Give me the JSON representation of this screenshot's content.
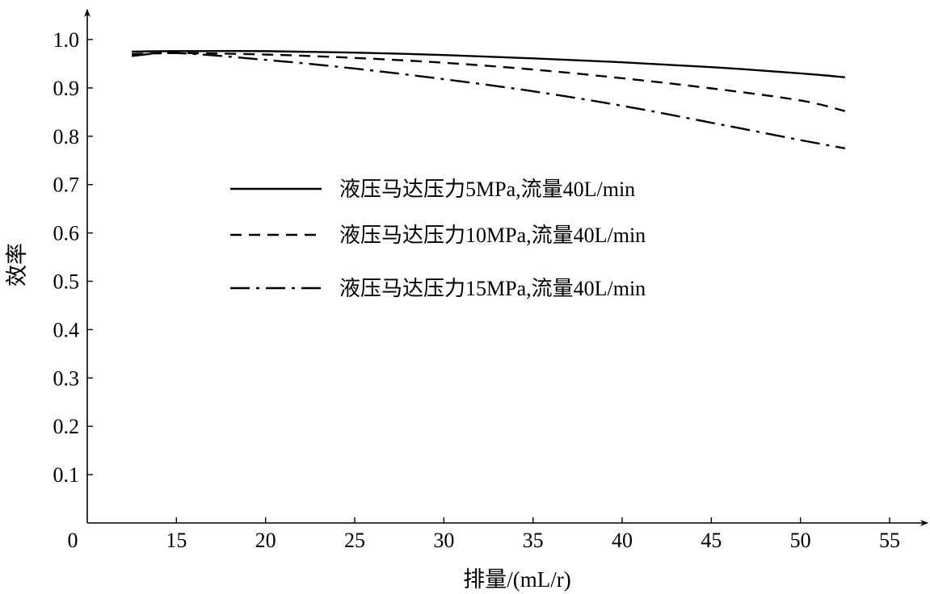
{
  "chart_data": {
    "type": "line",
    "title": "",
    "xlabel": "排量/(mL/r)",
    "ylabel": "效率",
    "xlim": [
      10,
      55
    ],
    "ylim": [
      0,
      1.0
    ],
    "origin_label": "0",
    "x_ticks": [
      15,
      20,
      25,
      30,
      35,
      40,
      45,
      50,
      55
    ],
    "x_tick_labels": [
      "15",
      "20",
      "25",
      "30",
      "35",
      "40",
      "45",
      "50",
      "55"
    ],
    "y_ticks": [
      0.1,
      0.2,
      0.3,
      0.4,
      0.5,
      0.6,
      0.7,
      0.8,
      0.9,
      1.0
    ],
    "y_tick_labels": [
      "0.1",
      "0.2",
      "0.3",
      "0.4",
      "0.5",
      "0.6",
      "0.7",
      "0.8",
      "0.9",
      "1.0"
    ],
    "grid": false,
    "legend_position": "center-left",
    "series": [
      {
        "name": "液压马达压力5MPa,流量40L/min",
        "line_style": "solid",
        "x": [
          12.5,
          15,
          20,
          25,
          30,
          35,
          40,
          45,
          50,
          52.5
        ],
        "y": [
          0.975,
          0.976,
          0.976,
          0.973,
          0.968,
          0.961,
          0.953,
          0.943,
          0.93,
          0.922
        ]
      },
      {
        "name": "液压马达压力10MPa,流量40L/min",
        "line_style": "dashed",
        "x": [
          12.5,
          15,
          20,
          25,
          30,
          35,
          40,
          45,
          50,
          52.5
        ],
        "y": [
          0.97,
          0.972,
          0.969,
          0.962,
          0.952,
          0.938,
          0.92,
          0.899,
          0.874,
          0.852
        ]
      },
      {
        "name": "液压马达压力15MPa,流量40L/min",
        "line_style": "dashdot",
        "x": [
          12.5,
          15,
          20,
          25,
          30,
          35,
          40,
          45,
          50,
          52.5
        ],
        "y": [
          0.966,
          0.972,
          0.958,
          0.94,
          0.918,
          0.893,
          0.863,
          0.828,
          0.792,
          0.775
        ]
      }
    ],
    "colors": {
      "line": "#000000",
      "background": "#ffffff"
    }
  }
}
